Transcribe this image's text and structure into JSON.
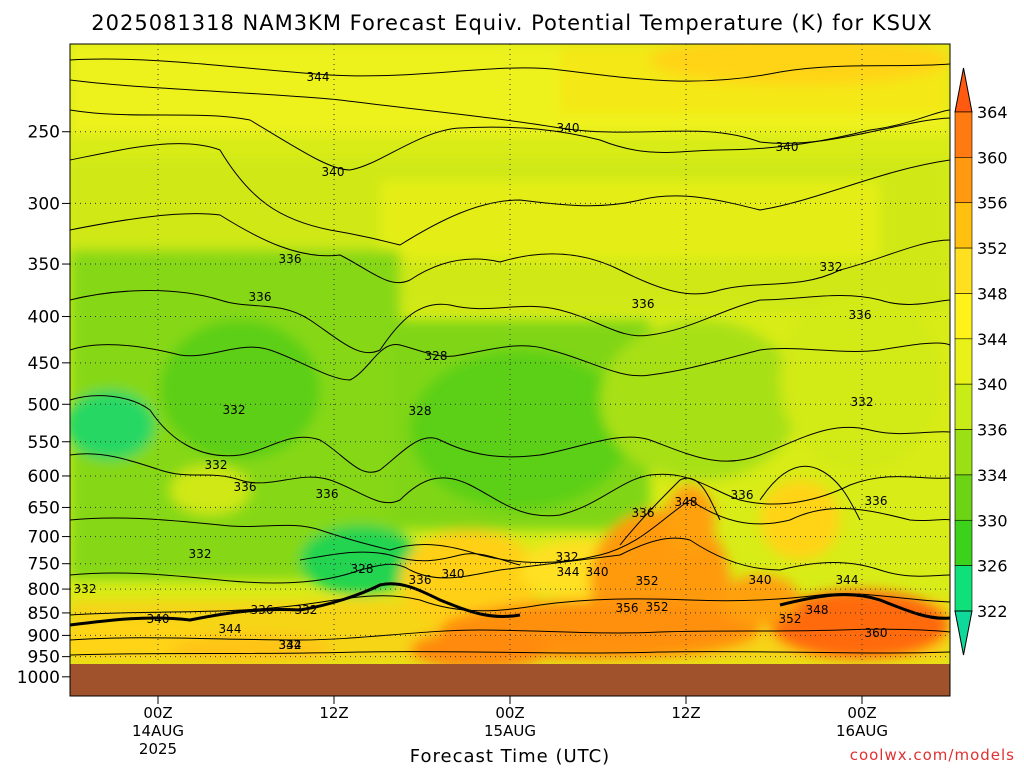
{
  "chart_data": {
    "type": "heatmap",
    "title": "2025081318 NAM3KM Forecast Equiv. Potential Temperature (K) for KSUX",
    "xlabel": "Forecast Time (UTC)",
    "ylabel": "",
    "y_axis": {
      "ticks": [
        "250",
        "300",
        "350",
        "400",
        "450",
        "500",
        "550",
        "600",
        "650",
        "700",
        "750",
        "800",
        "850",
        "900",
        "950",
        "1000"
      ],
      "values": [
        250,
        300,
        350,
        400,
        450,
        500,
        550,
        600,
        650,
        700,
        750,
        800,
        850,
        900,
        950,
        1000
      ],
      "scale": "log-pressure",
      "direction": "decreasing upward"
    },
    "x_axis": {
      "ticks": [
        {
          "time": "00Z",
          "date": "14AUG",
          "year": "2025"
        },
        {
          "time": "12Z",
          "date": "",
          "year": ""
        },
        {
          "time": "00Z",
          "date": "15AUG",
          "year": ""
        },
        {
          "time": "12Z",
          "date": "",
          "year": ""
        },
        {
          "time": "00Z",
          "date": "16AUG",
          "year": ""
        }
      ],
      "range": [
        "2025-08-13 18Z",
        "2025-08-16 06Z"
      ]
    },
    "colorbar": {
      "ticks": [
        "364",
        "360",
        "356",
        "352",
        "348",
        "344",
        "340",
        "336",
        "334",
        "330",
        "326",
        "322"
      ],
      "colors": [
        "#ff5a10",
        "#ff7a10",
        "#ff9a10",
        "#ffc010",
        "#ffe020",
        "#fff21a",
        "#e8f218",
        "#c8ec18",
        "#9ae014",
        "#6cd414",
        "#3cd21c",
        "#10e07a",
        "#0ed89a"
      ]
    },
    "contour_labels": [
      "344",
      "340",
      "340",
      "340",
      "336",
      "336",
      "336",
      "332",
      "336",
      "336",
      "328",
      "332",
      "328",
      "332",
      "336",
      "332",
      "332",
      "336",
      "332",
      "336",
      "348",
      "336",
      "332",
      "328",
      "344",
      "340",
      "336",
      "340",
      "352",
      "340",
      "344",
      "332",
      "340",
      "336",
      "344",
      "332",
      "356",
      "352",
      "352",
      "348",
      "360",
      "344"
    ],
    "grid": true,
    "ground_color": "#a0522d"
  },
  "credit": "coolwx.com/models"
}
